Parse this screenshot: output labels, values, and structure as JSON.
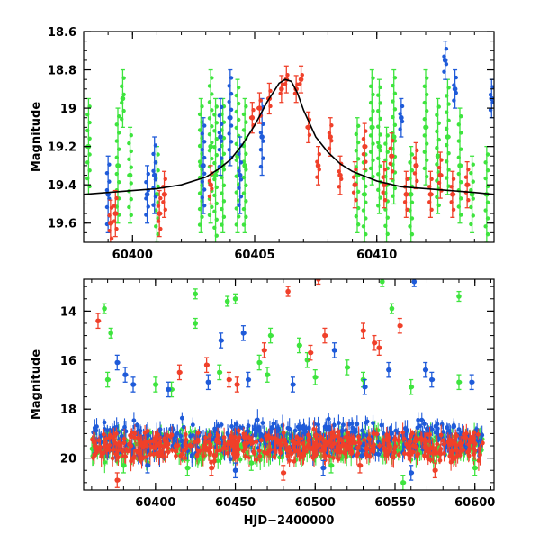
{
  "chart_data": [
    {
      "type": "scatter",
      "title": "",
      "xlabel": "",
      "ylabel": "Magnitude",
      "xlim": [
        60398.0,
        60414.8
      ],
      "ylim": [
        19.7,
        18.6
      ],
      "y_inverted": true,
      "x_ticks": [
        60400,
        60405,
        60410
      ],
      "y_ticks": [
        18.6,
        18.8,
        19,
        19.2,
        19.4,
        19.6
      ],
      "y_tick_labels": [
        "18.6",
        "18.8",
        "19",
        "19.2",
        "19.4",
        "19.6"
      ],
      "grid": false,
      "legend": "none",
      "colors": {
        "green": "#3ee43e",
        "blue": "#1f5bd9",
        "red": "#f0402a",
        "model": "#000000"
      },
      "series": [
        {
          "color": "green",
          "error_bars": true,
          "x": [
            60398.2,
            60399.4,
            60399.6,
            60399.9,
            60401.0,
            60402.8,
            60403.2,
            60403.4,
            60403.7,
            60404.3,
            60404.6,
            60409.2,
            60409.5,
            60409.8,
            60410.1,
            60410.4,
            60410.7,
            60411.4,
            60412.0,
            60412.5,
            60412.9,
            60413.4,
            60413.9,
            60414.5
          ],
          "y": [
            19.2,
            19.3,
            18.95,
            19.35,
            19.45,
            19.3,
            19.2,
            19.35,
            19.3,
            19.25,
            19.3,
            19.35,
            19.45,
            19.1,
            19.2,
            19.4,
            19.15,
            19.45,
            19.1,
            19.25,
            19.15,
            19.3,
            19.45,
            19.45
          ],
          "yerr": [
            0.25,
            0.3,
            0.15,
            0.25,
            0.25,
            0.35,
            0.4,
            0.4,
            0.35,
            0.4,
            0.35,
            0.3,
            0.25,
            0.3,
            0.35,
            0.3,
            0.35,
            0.25,
            0.3,
            0.3,
            0.3,
            0.3,
            0.2,
            0.25
          ]
        },
        {
          "color": "blue",
          "error_bars": true,
          "x": [
            60399.0,
            60400.6,
            60400.9,
            60402.9,
            60403.6,
            60404.0,
            60404.4,
            60405.3,
            60411.0,
            60412.8,
            60413.2,
            60414.7
          ],
          "y": [
            19.45,
            19.45,
            19.35,
            19.3,
            19.15,
            19.05,
            19.35,
            19.15,
            19.05,
            18.75,
            18.9,
            18.95
          ],
          "yerr": [
            0.2,
            0.15,
            0.2,
            0.25,
            0.2,
            0.25,
            0.2,
            0.2,
            0.1,
            0.1,
            0.1,
            0.1
          ]
        },
        {
          "color": "red",
          "error_bars": true,
          "x": [
            60399.1,
            60399.3,
            60401.1,
            60401.3,
            60403.2,
            60404.9,
            60405.2,
            60405.6,
            60406.1,
            60406.3,
            60406.7,
            60406.9,
            60407.2,
            60407.6,
            60408.1,
            60408.5,
            60409.1,
            60409.5,
            60410.3,
            60410.6,
            60411.2,
            60411.6,
            60412.2,
            60412.6,
            60413.1,
            60413.7
          ],
          "y": [
            19.6,
            19.55,
            19.55,
            19.45,
            19.4,
            19.05,
            19.0,
            18.95,
            18.9,
            18.85,
            18.9,
            18.85,
            19.1,
            19.3,
            19.15,
            19.35,
            19.4,
            19.2,
            19.4,
            19.25,
            19.45,
            19.3,
            19.45,
            19.35,
            19.45,
            19.4
          ],
          "yerr": [
            0.12,
            0.12,
            0.12,
            0.12,
            0.1,
            0.08,
            0.08,
            0.08,
            0.07,
            0.07,
            0.07,
            0.07,
            0.08,
            0.1,
            0.1,
            0.1,
            0.12,
            0.12,
            0.12,
            0.12,
            0.12,
            0.12,
            0.12,
            0.12,
            0.12,
            0.12
          ]
        },
        {
          "color": "model",
          "style": "line",
          "x": [
            60398,
            60399,
            60400,
            60401,
            60402,
            60403,
            60403.5,
            60404,
            60404.5,
            60405,
            60405.5,
            60406,
            60406.25,
            60406.5,
            60406.75,
            60407,
            60407.5,
            60408,
            60408.5,
            60409,
            60410,
            60411,
            60412,
            60413,
            60414,
            60414.8
          ],
          "y": [
            19.45,
            19.44,
            19.43,
            19.42,
            19.4,
            19.36,
            19.32,
            19.27,
            19.19,
            19.09,
            18.97,
            18.87,
            18.85,
            18.86,
            18.92,
            19.01,
            19.15,
            19.23,
            19.29,
            19.33,
            19.38,
            19.41,
            19.42,
            19.43,
            19.44,
            19.45
          ]
        }
      ]
    },
    {
      "type": "scatter",
      "title": "",
      "xlabel": "HJD−2400000",
      "ylabel": "Magnitude",
      "xlim": [
        60355,
        60612
      ],
      "ylim": [
        21.3,
        12.7
      ],
      "y_inverted": true,
      "x_ticks": [
        60400,
        60450,
        60500,
        60550,
        60600
      ],
      "y_ticks": [
        14,
        16,
        18,
        20
      ],
      "grid": false,
      "legend": "none",
      "dense_band": {
        "x_range": [
          60360,
          60605
        ],
        "y_center": 19.5,
        "y_spread": 0.5
      },
      "series": [
        {
          "color": "green",
          "error_bars": true,
          "x": [
            60368,
            60372,
            60425,
            60425,
            60445,
            60450,
            60465,
            60472,
            60490,
            60495,
            60520,
            60542,
            60548,
            60590,
            60370,
            60400,
            60410,
            60440,
            60470,
            60500,
            60530,
            60560,
            60590,
            60380,
            60420,
            60460,
            60510,
            60555,
            60600
          ],
          "y": [
            13.9,
            14.9,
            13.3,
            14.5,
            13.6,
            13.5,
            16.1,
            15.0,
            15.4,
            16.0,
            16.3,
            12.8,
            13.9,
            13.4,
            16.8,
            17.0,
            17.2,
            16.5,
            16.6,
            16.7,
            16.8,
            17.1,
            16.9,
            20.3,
            20.4,
            20.2,
            20.3,
            21.0,
            20.4
          ],
          "yerr": [
            0.2,
            0.2,
            0.2,
            0.2,
            0.2,
            0.2,
            0.3,
            0.3,
            0.3,
            0.3,
            0.3,
            0.2,
            0.2,
            0.2,
            0.3,
            0.3,
            0.3,
            0.3,
            0.3,
            0.3,
            0.3,
            0.3,
            0.3,
            0.3,
            0.3,
            0.3,
            0.3,
            0.3,
            0.3
          ]
        },
        {
          "color": "blue",
          "error_bars": true,
          "x": [
            60376,
            60381,
            60441,
            60455,
            60512,
            60546,
            60562,
            60569,
            60386,
            60408,
            60433,
            60458,
            60486,
            60531,
            60573,
            60598,
            60395,
            60450,
            60505,
            60560
          ],
          "y": [
            16.1,
            16.6,
            15.2,
            14.9,
            15.6,
            16.4,
            12.8,
            16.4,
            17.0,
            17.2,
            16.9,
            16.8,
            17.0,
            17.1,
            16.8,
            16.9,
            20.3,
            20.5,
            20.4,
            20.6
          ],
          "yerr": [
            0.3,
            0.3,
            0.3,
            0.3,
            0.3,
            0.3,
            0.2,
            0.3,
            0.3,
            0.3,
            0.3,
            0.3,
            0.3,
            0.3,
            0.3,
            0.3,
            0.3,
            0.3,
            0.3,
            0.3
          ]
        },
        {
          "color": "red",
          "error_bars": true,
          "x": [
            60364,
            60415,
            60432,
            60446,
            60451,
            60468,
            60483,
            60497,
            60502,
            60506,
            60537,
            60553,
            60376,
            60435,
            60480,
            60528,
            60575,
            60530,
            60540
          ],
          "y": [
            14.4,
            16.5,
            16.2,
            16.8,
            17.0,
            15.6,
            13.2,
            15.7,
            12.7,
            15.0,
            15.3,
            14.6,
            20.9,
            20.4,
            20.6,
            20.3,
            20.5,
            14.8,
            15.5
          ],
          "yerr": [
            0.3,
            0.3,
            0.3,
            0.3,
            0.3,
            0.3,
            0.2,
            0.3,
            0.2,
            0.3,
            0.3,
            0.3,
            0.3,
            0.3,
            0.3,
            0.3,
            0.3,
            0.3,
            0.3
          ]
        }
      ]
    }
  ]
}
